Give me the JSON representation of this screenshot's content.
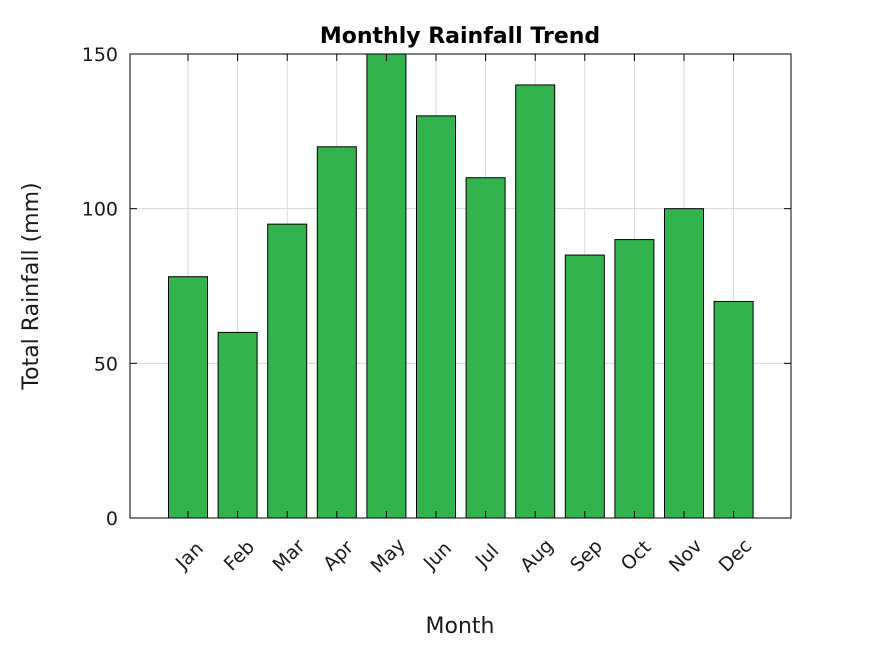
{
  "chart_data": {
    "type": "bar",
    "title": "Monthly Rainfall Trend",
    "xlabel": "Month",
    "ylabel": "Total Rainfall (mm)",
    "categories": [
      "Jan",
      "Feb",
      "Mar",
      "Apr",
      "May",
      "Jun",
      "Jul",
      "Aug",
      "Sep",
      "Oct",
      "Nov",
      "Dec"
    ],
    "values": [
      78,
      60,
      95,
      120,
      150,
      130,
      110,
      140,
      85,
      90,
      100,
      70
    ],
    "ylim": [
      0,
      150
    ],
    "yticks": [
      0,
      50,
      100,
      150
    ],
    "grid": true,
    "bar_color": "#33b34d",
    "edge_color": "#000000"
  }
}
